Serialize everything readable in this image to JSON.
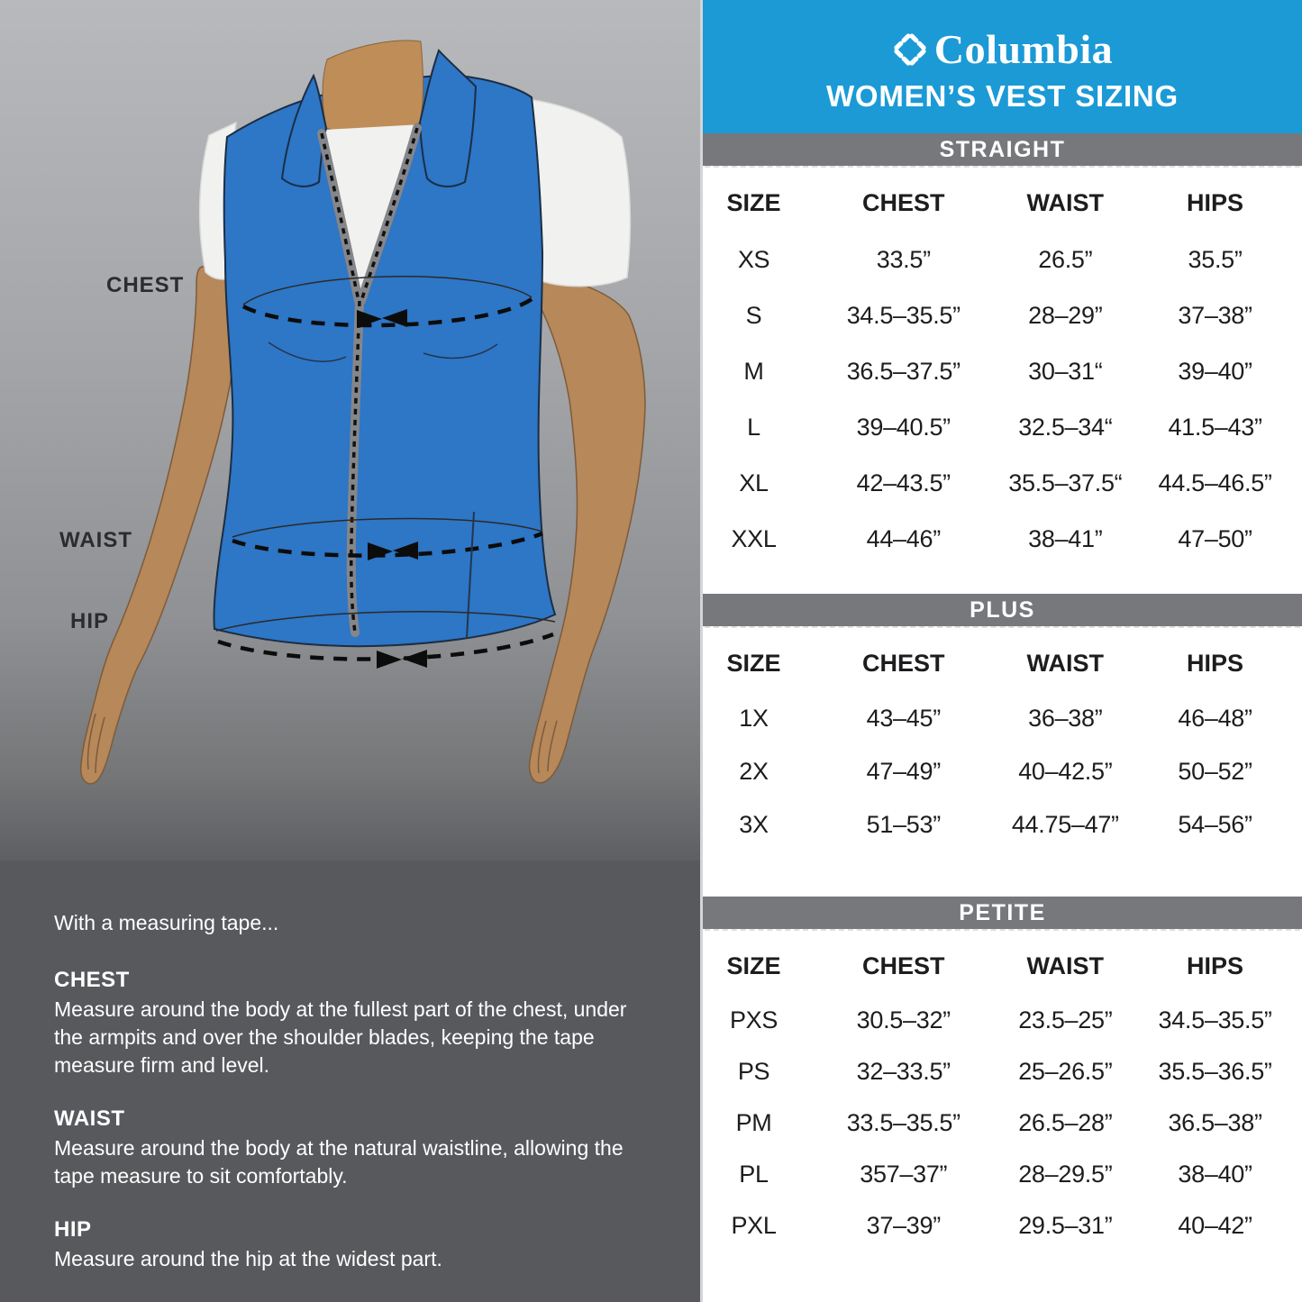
{
  "brand": {
    "name": "Columbia",
    "logo_icon": "columbia-diamond-logo"
  },
  "header": {
    "title": "WOMEN’S VEST SIZING"
  },
  "colors": {
    "header_blue": "#1b9ad6",
    "banner_gray": "#77787b",
    "instructions_gray": "#58595c",
    "vest_blue": "#2e76c6",
    "skin": "#b6885a",
    "table_text": "#1d1d1f"
  },
  "diagram": {
    "labels": {
      "chest": "CHEST",
      "waist": "WAIST",
      "hip": "HIP"
    }
  },
  "instructions": {
    "intro": "With a measuring tape...",
    "sections": [
      {
        "heading": "CHEST",
        "body": "Measure around the body at the fullest part of the chest, under the armpits and over the shoulder blades, keeping the tape measure firm and level."
      },
      {
        "heading": "WAIST",
        "body": "Measure around the body at the natural waistline, allowing the tape measure to sit comfortably."
      },
      {
        "heading": "HIP",
        "body": "Measure around the hip at the widest part."
      }
    ]
  },
  "tables": [
    {
      "banner": "STRAIGHT",
      "columns": [
        "SIZE",
        "CHEST",
        "WAIST",
        "HIPS"
      ],
      "rows": [
        [
          "XS",
          "33.5”",
          "26.5”",
          "35.5”"
        ],
        [
          "S",
          "34.5–35.5”",
          "28–29”",
          "37–38”"
        ],
        [
          "M",
          "36.5–37.5”",
          "30–31“",
          "39–40”"
        ],
        [
          "L",
          "39–40.5”",
          "32.5–34“",
          "41.5–43”"
        ],
        [
          "XL",
          "42–43.5”",
          "35.5–37.5“",
          "44.5–46.5”"
        ],
        [
          "XXL",
          "44–46”",
          "38–41”",
          "47–50”"
        ]
      ]
    },
    {
      "banner": "PLUS",
      "columns": [
        "SIZE",
        "CHEST",
        "WAIST",
        "HIPS"
      ],
      "rows": [
        [
          "1X",
          "43–45”",
          "36–38”",
          "46–48”"
        ],
        [
          "2X",
          "47–49”",
          "40–42.5”",
          "50–52”"
        ],
        [
          "3X",
          "51–53”",
          "44.75–47”",
          "54–56”"
        ]
      ]
    },
    {
      "banner": "PETITE",
      "columns": [
        "SIZE",
        "CHEST",
        "WAIST",
        "HIPS"
      ],
      "rows": [
        [
          "PXS",
          "30.5–32”",
          "23.5–25”",
          "34.5–35.5”"
        ],
        [
          "PS",
          "32–33.5”",
          "25–26.5”",
          "35.5–36.5”"
        ],
        [
          "PM",
          "33.5–35.5”",
          "26.5–28”",
          "36.5–38”"
        ],
        [
          "PL",
          "357–37”",
          "28–29.5”",
          "38–40”"
        ],
        [
          "PXL",
          "37–39”",
          "29.5–31”",
          "40–42”"
        ]
      ]
    }
  ]
}
